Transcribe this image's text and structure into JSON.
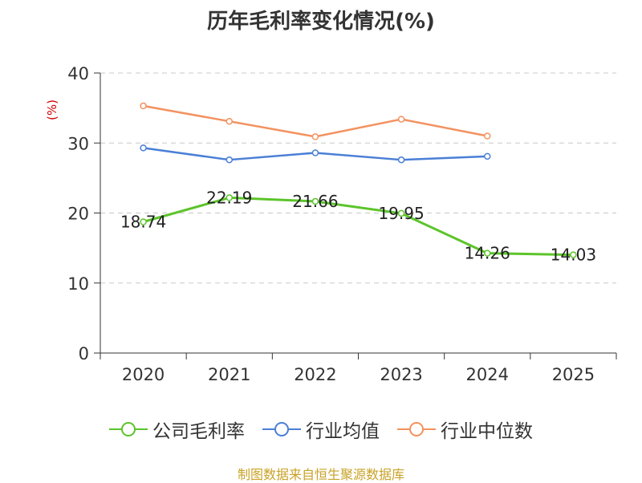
{
  "chart_data": {
    "type": "line",
    "title": "历年毛利率变化情况(%)",
    "ylabel": "(%)",
    "xlabel": "",
    "categories": [
      "2020",
      "2021",
      "2022",
      "2023",
      "2024",
      "2025"
    ],
    "ylim": [
      0,
      40
    ],
    "yticks": [
      0,
      10,
      20,
      30,
      40
    ],
    "grid": true,
    "legend_position": "bottom",
    "series": [
      {
        "name": "公司毛利率",
        "color": "#5cc42a",
        "values": [
          18.74,
          22.19,
          21.66,
          19.95,
          14.26,
          14.03
        ],
        "labels": [
          "18.74",
          "22.19",
          "21.66",
          "19.95",
          "14.26",
          "14.03"
        ]
      },
      {
        "name": "行业均值",
        "color": "#4a7fd6",
        "values": [
          29.3,
          27.6,
          28.6,
          27.6,
          28.1,
          null
        ]
      },
      {
        "name": "行业中位数",
        "color": "#f39260",
        "values": [
          35.3,
          33.1,
          30.9,
          33.4,
          31.0,
          null
        ]
      }
    ]
  },
  "source": "制图数据来自恒生聚源数据库"
}
